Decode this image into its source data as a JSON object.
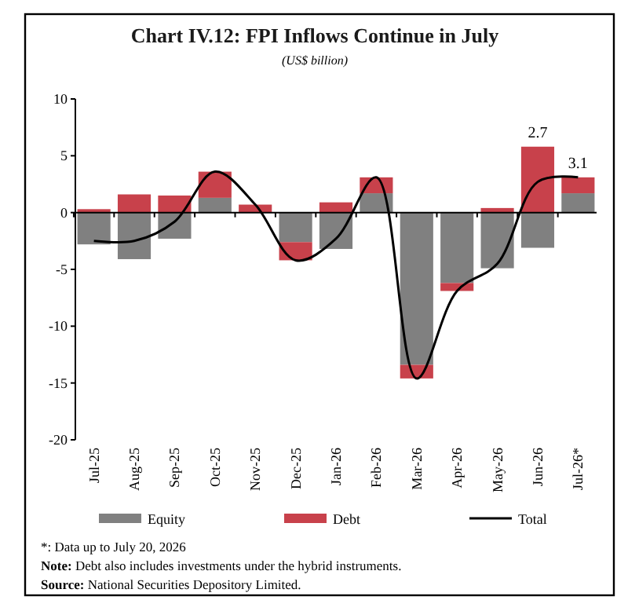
{
  "chart_data": {
    "type": "bar",
    "title": "Chart IV.12: FPI Inflows Continue in July",
    "subtitle": "(US$ billion)",
    "categories": [
      "Jul-25",
      "Aug-25",
      "Sep-25",
      "Oct-25",
      "Nov-25",
      "Dec-25",
      "Jan-26",
      "Feb-26",
      "Mar-26",
      "Apr-26",
      "May-26",
      "Jun-26",
      "Jul-26*"
    ],
    "stacked": true,
    "series": [
      {
        "name": "Equity",
        "color": "#808080",
        "values": [
          -2.8,
          -4.1,
          -2.3,
          1.3,
          0,
          -2.6,
          -3.2,
          1.7,
          -13.4,
          -6.2,
          -4.9,
          -3.1,
          1.7
        ]
      },
      {
        "name": "Debt",
        "color": "#c8414b",
        "values": [
          0.3,
          1.6,
          1.5,
          2.3,
          0.7,
          -1.6,
          0.9,
          1.4,
          -1.2,
          -0.7,
          0.4,
          5.8,
          1.4
        ]
      },
      {
        "name": "Total",
        "type": "line",
        "color": "#000000",
        "values": [
          -2.5,
          -2.5,
          -0.8,
          3.6,
          0.7,
          -4.2,
          -2.3,
          3.1,
          -14.6,
          -6.9,
          -4.5,
          2.7,
          3.1
        ],
        "value_labels": [
          null,
          null,
          null,
          null,
          null,
          null,
          null,
          null,
          null,
          null,
          null,
          "2.7",
          "3.1"
        ]
      }
    ],
    "ylim": [
      -20,
      10
    ],
    "yticks": [
      -20,
      -15,
      -10,
      -5,
      0,
      5,
      10
    ],
    "legend": "bottom",
    "annotations": [
      "*: Data up to July 20, 2026",
      "Note: Debt also includes investments under the hybrid instruments.",
      "Source: National Securities Depository Limited."
    ]
  }
}
